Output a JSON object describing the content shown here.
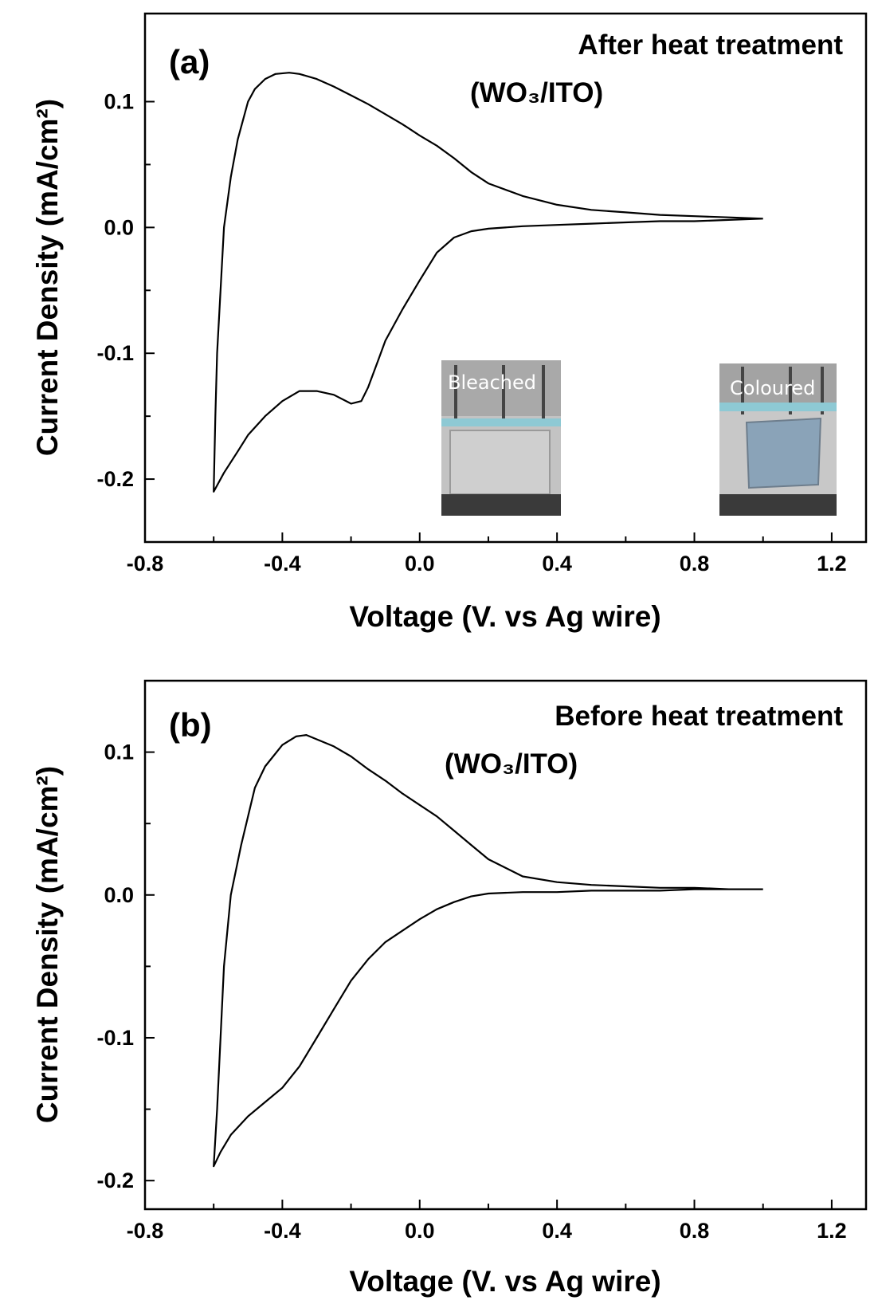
{
  "chart_data": [
    {
      "type": "line",
      "panel_label": "(a)",
      "annotation_line1": "After heat treatment",
      "annotation_line2": "(WO₃/ITO)",
      "xlabel": "Voltage (V. vs Ag wire)",
      "ylabel": "Current Density (mA/cm²)",
      "xlim": [
        -0.8,
        1.3
      ],
      "ylim": [
        -0.25,
        0.17
      ],
      "xticks": [
        -0.8,
        -0.4,
        0.0,
        0.4,
        0.8,
        1.2
      ],
      "xtick_labels": [
        "-0.8",
        "-0.4",
        "0.0",
        "0.4",
        "0.8",
        "1.2"
      ],
      "yticks": [
        -0.2,
        -0.1,
        0.0,
        0.1
      ],
      "ytick_labels": [
        "-0.2",
        "-0.1",
        "0.0",
        "0.1"
      ],
      "grid": false,
      "insets": [
        "Bleached",
        "Coloured"
      ],
      "series": [
        {
          "points": [
            [
              1.0,
              0.007
            ],
            [
              0.9,
              0.008
            ],
            [
              0.8,
              0.009
            ],
            [
              0.7,
              0.01
            ],
            [
              0.6,
              0.012
            ],
            [
              0.5,
              0.014
            ],
            [
              0.4,
              0.018
            ],
            [
              0.3,
              0.025
            ],
            [
              0.2,
              0.035
            ],
            [
              0.15,
              0.044
            ],
            [
              0.1,
              0.055
            ],
            [
              0.05,
              0.065
            ],
            [
              0.0,
              0.073
            ],
            [
              -0.05,
              0.082
            ],
            [
              -0.1,
              0.09
            ],
            [
              -0.15,
              0.098
            ],
            [
              -0.2,
              0.105
            ],
            [
              -0.25,
              0.112
            ],
            [
              -0.3,
              0.118
            ],
            [
              -0.35,
              0.122
            ],
            [
              -0.38,
              0.123
            ],
            [
              -0.42,
              0.122
            ],
            [
              -0.45,
              0.118
            ],
            [
              -0.48,
              0.11
            ],
            [
              -0.5,
              0.1
            ],
            [
              -0.53,
              0.07
            ],
            [
              -0.55,
              0.04
            ],
            [
              -0.57,
              0.0
            ],
            [
              -0.58,
              -0.05
            ],
            [
              -0.59,
              -0.1
            ],
            [
              -0.595,
              -0.15
            ],
            [
              -0.6,
              -0.21
            ],
            [
              -0.57,
              -0.195
            ],
            [
              -0.53,
              -0.178
            ],
            [
              -0.5,
              -0.165
            ],
            [
              -0.45,
              -0.15
            ],
            [
              -0.4,
              -0.138
            ],
            [
              -0.35,
              -0.13
            ],
            [
              -0.3,
              -0.13
            ],
            [
              -0.25,
              -0.133
            ],
            [
              -0.2,
              -0.14
            ],
            [
              -0.17,
              -0.138
            ],
            [
              -0.15,
              -0.127
            ],
            [
              -0.12,
              -0.105
            ],
            [
              -0.1,
              -0.09
            ],
            [
              -0.05,
              -0.065
            ],
            [
              0.0,
              -0.042
            ],
            [
              0.05,
              -0.02
            ],
            [
              0.1,
              -0.008
            ],
            [
              0.15,
              -0.003
            ],
            [
              0.2,
              -0.001
            ],
            [
              0.3,
              0.001
            ],
            [
              0.4,
              0.002
            ],
            [
              0.5,
              0.003
            ],
            [
              0.6,
              0.004
            ],
            [
              0.7,
              0.005
            ],
            [
              0.8,
              0.005
            ],
            [
              0.9,
              0.006
            ],
            [
              1.0,
              0.007
            ]
          ]
        }
      ]
    },
    {
      "type": "line",
      "panel_label": "(b)",
      "annotation_line1": "Before heat treatment",
      "annotation_line2": "(WO₃/ITO)",
      "xlabel": "Voltage (V. vs Ag wire)",
      "ylabel": "Current Density (mA/cm²)",
      "xlim": [
        -0.8,
        1.3
      ],
      "ylim": [
        -0.22,
        0.15
      ],
      "xticks": [
        -0.8,
        -0.4,
        0.0,
        0.4,
        0.8,
        1.2
      ],
      "xtick_labels": [
        "-0.8",
        "-0.4",
        "0.0",
        "0.4",
        "0.8",
        "1.2"
      ],
      "yticks": [
        -0.2,
        -0.1,
        0.0,
        0.1
      ],
      "ytick_labels": [
        "-0.2",
        "-0.1",
        "0.0",
        "0.1"
      ],
      "grid": false,
      "series": [
        {
          "points": [
            [
              1.0,
              0.004
            ],
            [
              0.9,
              0.004
            ],
            [
              0.8,
              0.005
            ],
            [
              0.7,
              0.005
            ],
            [
              0.6,
              0.006
            ],
            [
              0.5,
              0.007
            ],
            [
              0.4,
              0.009
            ],
            [
              0.3,
              0.013
            ],
            [
              0.2,
              0.025
            ],
            [
              0.15,
              0.035
            ],
            [
              0.1,
              0.045
            ],
            [
              0.05,
              0.055
            ],
            [
              0.0,
              0.063
            ],
            [
              -0.05,
              0.071
            ],
            [
              -0.1,
              0.08
            ],
            [
              -0.15,
              0.088
            ],
            [
              -0.2,
              0.097
            ],
            [
              -0.25,
              0.104
            ],
            [
              -0.3,
              0.109
            ],
            [
              -0.33,
              0.112
            ],
            [
              -0.36,
              0.111
            ],
            [
              -0.4,
              0.105
            ],
            [
              -0.45,
              0.09
            ],
            [
              -0.48,
              0.075
            ],
            [
              -0.5,
              0.055
            ],
            [
              -0.52,
              0.035
            ],
            [
              -0.55,
              0.0
            ],
            [
              -0.57,
              -0.05
            ],
            [
              -0.58,
              -0.1
            ],
            [
              -0.59,
              -0.15
            ],
            [
              -0.6,
              -0.19
            ],
            [
              -0.58,
              -0.18
            ],
            [
              -0.55,
              -0.168
            ],
            [
              -0.5,
              -0.155
            ],
            [
              -0.45,
              -0.145
            ],
            [
              -0.4,
              -0.135
            ],
            [
              -0.35,
              -0.12
            ],
            [
              -0.3,
              -0.1
            ],
            [
              -0.25,
              -0.08
            ],
            [
              -0.2,
              -0.06
            ],
            [
              -0.15,
              -0.045
            ],
            [
              -0.1,
              -0.033
            ],
            [
              -0.05,
              -0.025
            ],
            [
              0.0,
              -0.017
            ],
            [
              0.05,
              -0.01
            ],
            [
              0.1,
              -0.005
            ],
            [
              0.15,
              -0.001
            ],
            [
              0.2,
              0.001
            ],
            [
              0.3,
              0.002
            ],
            [
              0.4,
              0.002
            ],
            [
              0.5,
              0.003
            ],
            [
              0.6,
              0.003
            ],
            [
              0.7,
              0.003
            ],
            [
              0.8,
              0.004
            ],
            [
              0.9,
              0.004
            ],
            [
              1.0,
              0.004
            ]
          ]
        }
      ]
    }
  ]
}
